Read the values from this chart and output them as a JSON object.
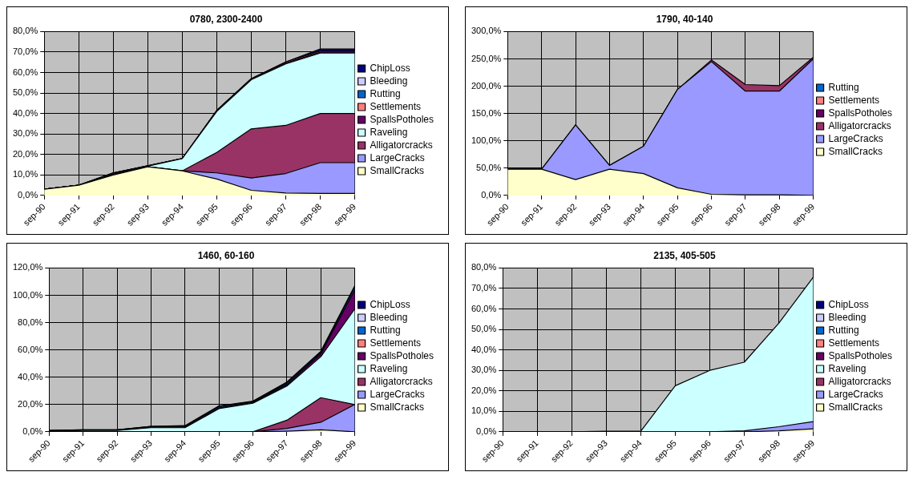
{
  "chart_data": [
    {
      "type": "area",
      "title": "0780, 2300-2400",
      "categories": [
        "sep-90",
        "sep-91",
        "sep-92",
        "sep-93",
        "sep-94",
        "sep-95",
        "sep-96",
        "sep-97",
        "sep-98",
        "sep-99"
      ],
      "stacked": true,
      "grid": true,
      "legend": "right",
      "ylim": [
        0,
        80
      ],
      "yticks": [
        {
          "value": 0,
          "label": "0,0%"
        },
        {
          "value": 10,
          "label": "10,0%"
        },
        {
          "value": 20,
          "label": "20,0%"
        },
        {
          "value": 30,
          "label": "30,0%"
        },
        {
          "value": 40,
          "label": "40,0%"
        },
        {
          "value": 50,
          "label": "50,0%"
        },
        {
          "value": 60,
          "label": "60,0%"
        },
        {
          "value": 70,
          "label": "70,0%"
        },
        {
          "value": 80,
          "label": "80,0%"
        }
      ],
      "series": [
        {
          "name": "SmallCracks",
          "color": "#ffffcc",
          "values": [
            3,
            5,
            10,
            14,
            12,
            8,
            2.5,
            1.2,
            1,
            1
          ]
        },
        {
          "name": "LargeCracks",
          "color": "#9999ff",
          "values": [
            0,
            0,
            0,
            0,
            0,
            3,
            6,
            9.5,
            15,
            15
          ]
        },
        {
          "name": "Alligatorcracks",
          "color": "#993366",
          "values": [
            0,
            0,
            0,
            0,
            0,
            10,
            24,
            23.5,
            24,
            24
          ]
        },
        {
          "name": "Raveling",
          "color": "#ccffff",
          "values": [
            0,
            0,
            0.5,
            0.3,
            6,
            20,
            24,
            30,
            29.5,
            29.5
          ]
        },
        {
          "name": "SpallsPotholes",
          "color": "#660066",
          "values": [
            0,
            0,
            0.5,
            0.2,
            0,
            0.5,
            0.5,
            0.5,
            0.5,
            0.5
          ]
        },
        {
          "name": "Settlements",
          "color": "#ff8080",
          "values": [
            0,
            0,
            0,
            0,
            0,
            0,
            0,
            0.5,
            0.5,
            0.5
          ]
        },
        {
          "name": "Rutting",
          "color": "#0066cc",
          "values": [
            null,
            null,
            null,
            null,
            null,
            null,
            null,
            null,
            null,
            null
          ]
        },
        {
          "name": "Bleeding",
          "color": "#ccccff",
          "values": [
            null,
            null,
            null,
            null,
            null,
            null,
            null,
            null,
            null,
            null
          ]
        },
        {
          "name": "ChipLoss",
          "color": "#000080",
          "values": [
            0,
            0,
            0,
            0,
            0,
            0,
            0,
            0,
            1,
            1
          ]
        }
      ]
    },
    {
      "type": "area",
      "title": "1790, 40-140",
      "categories": [
        "sep-90",
        "sep-91",
        "sep-92",
        "sep-93",
        "sep-94",
        "sep-95",
        "sep-96",
        "sep-97",
        "sep-98",
        "sep-99"
      ],
      "stacked": true,
      "grid": true,
      "legend": "right",
      "ylim": [
        0,
        300
      ],
      "yticks": [
        {
          "value": 0,
          "label": "0,0%"
        },
        {
          "value": 50,
          "label": "50,0%"
        },
        {
          "value": 100,
          "label": "100,0%"
        },
        {
          "value": 150,
          "label": "150,0%"
        },
        {
          "value": 200,
          "label": "200,0%"
        },
        {
          "value": 250,
          "label": "250,0%"
        },
        {
          "value": 300,
          "label": "300,0%"
        }
      ],
      "series": [
        {
          "name": "SmallCracks",
          "color": "#ffffcc",
          "values": [
            48,
            48,
            29,
            48,
            40,
            14,
            2,
            1,
            1,
            0
          ]
        },
        {
          "name": "LargeCracks",
          "color": "#9999ff",
          "values": [
            0,
            0,
            100,
            7,
            50,
            180,
            243,
            190,
            190,
            250
          ]
        },
        {
          "name": "Alligatorcracks",
          "color": "#993366",
          "values": [
            0,
            0,
            0,
            0,
            0,
            0,
            3,
            12,
            10,
            3
          ]
        },
        {
          "name": "SpallsPotholes",
          "color": "#660066",
          "values": [
            null,
            null,
            null,
            null,
            null,
            null,
            null,
            null,
            null,
            null
          ]
        },
        {
          "name": "Settlements",
          "color": "#ff8080",
          "values": [
            null,
            null,
            null,
            null,
            null,
            null,
            null,
            null,
            null,
            null
          ]
        },
        {
          "name": "Rutting",
          "color": "#0066cc",
          "values": [
            null,
            null,
            null,
            null,
            null,
            null,
            null,
            null,
            null,
            null
          ]
        }
      ]
    },
    {
      "type": "area",
      "title": "1460, 60-160",
      "categories": [
        "sep-90",
        "sep-91",
        "sep-92",
        "sep-93",
        "sep-94",
        "sep-95",
        "sep-96",
        "sep-97",
        "sep-98",
        "sep-99"
      ],
      "stacked": true,
      "grid": true,
      "legend": "right",
      "ylim": [
        0,
        120
      ],
      "yticks": [
        {
          "value": 0,
          "label": "0,0%"
        },
        {
          "value": 20,
          "label": "20,0%"
        },
        {
          "value": 40,
          "label": "40,0%"
        },
        {
          "value": 60,
          "label": "60,0%"
        },
        {
          "value": 80,
          "label": "80,0%"
        },
        {
          "value": 100,
          "label": "100,0%"
        },
        {
          "value": 120,
          "label": "120,0%"
        }
      ],
      "series": [
        {
          "name": "SmallCracks",
          "color": "#ffffcc",
          "values": [
            0,
            0,
            0,
            0,
            0,
            0,
            0,
            0.5,
            1.5,
            0
          ]
        },
        {
          "name": "LargeCracks",
          "color": "#9999ff",
          "values": [
            0,
            0,
            0,
            0,
            0,
            0,
            0,
            2,
            5.5,
            20
          ]
        },
        {
          "name": "Alligatorcracks",
          "color": "#993366",
          "values": [
            0,
            0,
            0,
            0,
            0,
            0,
            0,
            6,
            18,
            0
          ]
        },
        {
          "name": "Raveling",
          "color": "#ccffff",
          "values": [
            0.5,
            1,
            1,
            3,
            3,
            17,
            21,
            25,
            30,
            70
          ]
        },
        {
          "name": "SpallsPotholes",
          "color": "#660066",
          "values": [
            0.3,
            0.3,
            0.3,
            0.5,
            0.5,
            0.5,
            0.5,
            1,
            2,
            14
          ]
        },
        {
          "name": "Settlements",
          "color": "#ff8080",
          "values": [
            null,
            null,
            null,
            null,
            null,
            null,
            null,
            null,
            null,
            null
          ]
        },
        {
          "name": "Rutting",
          "color": "#0066cc",
          "values": [
            0.2,
            0.2,
            0.2,
            0.5,
            0.5,
            1,
            0.5,
            1,
            1,
            2
          ]
        },
        {
          "name": "Bleeding",
          "color": "#ccccff",
          "values": [
            null,
            null,
            null,
            null,
            null,
            null,
            null,
            null,
            null,
            null
          ]
        },
        {
          "name": "ChipLoss",
          "color": "#000080",
          "values": [
            0,
            0,
            0,
            0,
            0.5,
            0.5,
            0.5,
            1,
            1,
            1
          ]
        }
      ]
    },
    {
      "type": "area",
      "title": "2135, 405-505",
      "categories": [
        "sep-90",
        "sep-91",
        "sep-92",
        "sep-93",
        "sep-94",
        "sep-95",
        "sep-96",
        "sep-97",
        "sep-98",
        "sep-99"
      ],
      "stacked": true,
      "grid": true,
      "legend": "right",
      "ylim": [
        0,
        80
      ],
      "yticks": [
        {
          "value": 0,
          "label": "0,0%"
        },
        {
          "value": 10,
          "label": "10,0%"
        },
        {
          "value": 20,
          "label": "20,0%"
        },
        {
          "value": 30,
          "label": "30,0%"
        },
        {
          "value": 40,
          "label": "40,0%"
        },
        {
          "value": 50,
          "label": "50,0%"
        },
        {
          "value": 60,
          "label": "60,0%"
        },
        {
          "value": 70,
          "label": "70,0%"
        },
        {
          "value": 80,
          "label": "80,0%"
        }
      ],
      "series": [
        {
          "name": "SmallCracks",
          "color": "#ffffcc",
          "values": [
            0,
            0,
            0,
            0,
            0,
            0,
            0,
            0,
            0.5,
            1.5
          ]
        },
        {
          "name": "LargeCracks",
          "color": "#9999ff",
          "values": [
            0,
            0,
            0,
            0,
            0,
            0,
            0,
            0.5,
            2,
            3.5
          ]
        },
        {
          "name": "Alligatorcracks",
          "color": "#993366",
          "values": [
            null,
            null,
            null,
            null,
            null,
            null,
            null,
            null,
            null,
            null
          ]
        },
        {
          "name": "Raveling",
          "color": "#ccffff",
          "values": [
            0,
            0,
            0,
            0.3,
            0.3,
            22.5,
            30,
            33.5,
            50.5,
            70.5
          ]
        },
        {
          "name": "SpallsPotholes",
          "color": "#660066",
          "values": [
            null,
            null,
            null,
            null,
            null,
            null,
            null,
            null,
            null,
            null
          ]
        },
        {
          "name": "Settlements",
          "color": "#ff8080",
          "values": [
            null,
            null,
            null,
            null,
            null,
            null,
            null,
            null,
            null,
            null
          ]
        },
        {
          "name": "Rutting",
          "color": "#0066cc",
          "values": [
            null,
            null,
            null,
            null,
            null,
            null,
            null,
            null,
            null,
            null
          ]
        },
        {
          "name": "Bleeding",
          "color": "#ccccff",
          "values": [
            null,
            null,
            null,
            null,
            null,
            null,
            null,
            null,
            null,
            null
          ]
        },
        {
          "name": "ChipLoss",
          "color": "#000080",
          "values": [
            null,
            null,
            null,
            null,
            null,
            null,
            null,
            null,
            null,
            null
          ]
        }
      ]
    }
  ]
}
